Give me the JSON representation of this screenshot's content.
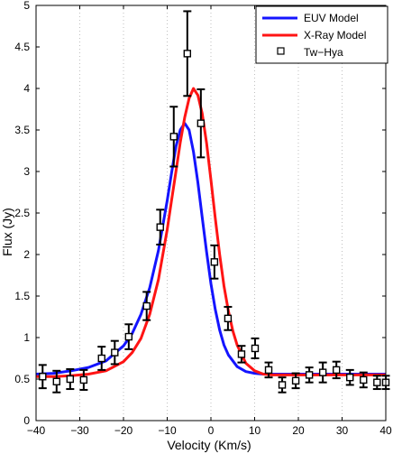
{
  "chart_data": {
    "type": "line",
    "title": "",
    "xlabel": "Velocity (Km/s)",
    "ylabel": "Flux (Jy)",
    "xlim": [
      -40,
      40
    ],
    "ylim": [
      0,
      5
    ],
    "xticks": [
      -40,
      -30,
      -20,
      -10,
      0,
      10,
      20,
      30,
      40
    ],
    "yticks": [
      0,
      0.5,
      1,
      1.5,
      2,
      2.5,
      3,
      3.5,
      4,
      4.5,
      5
    ],
    "ytick_labels": [
      "0",
      "0.5",
      "1",
      "1.5",
      "2",
      "2.5",
      "3",
      "3.5",
      "4",
      "4.5",
      "5"
    ],
    "grid": "vertical dotted",
    "legend": "top-right",
    "series": [
      {
        "name": "EUV Model",
        "kind": "line",
        "color": "#1414ff",
        "x": [
          -40,
          -36,
          -32,
          -28,
          -24,
          -20,
          -18,
          -16,
          -14,
          -12,
          -10,
          -9,
          -8,
          -7,
          -6,
          -5,
          -4,
          -3,
          -2,
          -1,
          0,
          1,
          2,
          3,
          4,
          6,
          8,
          10,
          12,
          14,
          16,
          20,
          24,
          28,
          32,
          36,
          40
        ],
        "y": [
          0.56,
          0.57,
          0.6,
          0.64,
          0.72,
          0.9,
          1.05,
          1.28,
          1.6,
          2.05,
          2.65,
          2.98,
          3.3,
          3.5,
          3.58,
          3.5,
          3.24,
          2.87,
          2.45,
          2.03,
          1.65,
          1.34,
          1.09,
          0.91,
          0.79,
          0.65,
          0.59,
          0.57,
          0.56,
          0.56,
          0.56,
          0.56,
          0.56,
          0.56,
          0.56,
          0.56,
          0.56
        ]
      },
      {
        "name": "X-Ray Model",
        "kind": "line",
        "color": "#ff1414",
        "x": [
          -40,
          -36,
          -32,
          -28,
          -24,
          -20,
          -18,
          -16,
          -14,
          -12,
          -10,
          -9,
          -8,
          -7,
          -6,
          -5,
          -4,
          -3,
          -2,
          -1,
          0,
          1,
          2,
          3,
          4,
          5,
          6,
          8,
          10,
          12,
          14,
          16,
          20,
          24,
          28,
          32,
          36,
          40
        ],
        "y": [
          0.53,
          0.53,
          0.54,
          0.56,
          0.6,
          0.71,
          0.82,
          0.99,
          1.28,
          1.7,
          2.3,
          2.65,
          3.0,
          3.35,
          3.65,
          3.88,
          4.0,
          3.92,
          3.7,
          3.34,
          2.9,
          2.44,
          2.0,
          1.62,
          1.32,
          1.08,
          0.91,
          0.69,
          0.6,
          0.56,
          0.55,
          0.55,
          0.55,
          0.55,
          0.55,
          0.55,
          0.55,
          0.55
        ]
      },
      {
        "name": "Tw−Hya",
        "kind": "errorbar",
        "color": "#000000",
        "x": [
          -38.5,
          -35.3,
          -32.2,
          -29.1,
          -25.0,
          -22.0,
          -18.8,
          -14.7,
          -11.6,
          -8.5,
          -5.4,
          -2.3,
          0.8,
          3.9,
          7.0,
          10.1,
          13.2,
          16.3,
          19.4,
          22.5,
          25.6,
          28.7,
          31.8,
          34.9,
          38.0,
          40.0
        ],
        "y": [
          0.53,
          0.47,
          0.5,
          0.49,
          0.75,
          0.82,
          1.01,
          1.38,
          2.33,
          3.42,
          4.42,
          3.58,
          1.91,
          1.23,
          0.8,
          0.87,
          0.61,
          0.43,
          0.48,
          0.55,
          0.58,
          0.61,
          0.52,
          0.49,
          0.46,
          0.46
        ],
        "err": [
          0.14,
          0.13,
          0.12,
          0.12,
          0.14,
          0.14,
          0.15,
          0.17,
          0.21,
          0.36,
          0.51,
          0.41,
          0.2,
          0.14,
          0.1,
          0.12,
          0.09,
          0.09,
          0.09,
          0.09,
          0.12,
          0.1,
          0.09,
          0.09,
          0.08,
          0.08
        ]
      }
    ]
  }
}
